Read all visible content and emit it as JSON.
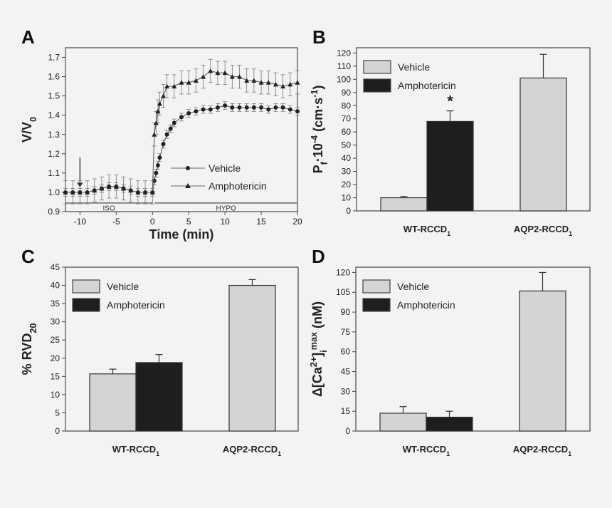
{
  "colors": {
    "vehicle": "#d4d4d4",
    "amphotericin": "#1e1e1e",
    "background": "#f3f3f3"
  },
  "chart_data": [
    {
      "panel": "A",
      "type": "line",
      "xlabel": "Time (min)",
      "ylabel": [
        {
          "t": "V/V",
          "p": "n"
        },
        {
          "t": "0",
          "p": "sub"
        }
      ],
      "xlim": [
        -12,
        20
      ],
      "ylim": [
        0.9,
        1.75
      ],
      "xticks": [
        -10,
        -5,
        0,
        5,
        10,
        15,
        20
      ],
      "yticks": [
        0.9,
        1.0,
        1.1,
        1.2,
        1.3,
        1.4,
        1.5,
        1.6,
        1.7
      ],
      "ytick_labels": [
        "0.9",
        "1.0",
        "1.1",
        "1.2",
        "1.3",
        "1.4",
        "1.5",
        "1.6",
        "1.7"
      ],
      "conditions": [
        {
          "label": "ISO",
          "from": -12,
          "to": 0
        },
        {
          "label": "HYPO",
          "from": 0.3,
          "to": 20
        }
      ],
      "arrow_at": -10,
      "legend_position": "center-right",
      "series": [
        {
          "name": "Vehicle",
          "marker": "circle",
          "error": 0.02,
          "x": [
            -12,
            -11,
            -10,
            -9,
            -8,
            -7,
            -6,
            -5,
            -4,
            -3,
            -2,
            -1,
            0,
            0.25,
            0.5,
            0.75,
            1,
            1.5,
            2,
            2.5,
            3,
            4,
            5,
            6,
            7,
            8,
            9,
            10,
            11,
            12,
            13,
            14,
            15,
            16,
            17,
            18,
            19,
            20
          ],
          "y": [
            1.0,
            1.0,
            1.0,
            1.0,
            1.01,
            1.02,
            1.03,
            1.03,
            1.02,
            1.01,
            1.0,
            1.0,
            1.0,
            1.06,
            1.1,
            1.14,
            1.18,
            1.25,
            1.3,
            1.33,
            1.36,
            1.39,
            1.41,
            1.42,
            1.43,
            1.43,
            1.44,
            1.45,
            1.44,
            1.44,
            1.44,
            1.44,
            1.44,
            1.43,
            1.44,
            1.44,
            1.43,
            1.42
          ]
        },
        {
          "name": "Amphotericin",
          "marker": "triangle",
          "error": 0.06,
          "x": [
            -12,
            -11,
            -10,
            -9,
            -8,
            -7,
            -6,
            -5,
            -4,
            -3,
            -2,
            -1,
            0,
            0.25,
            0.5,
            0.75,
            1,
            1.5,
            2,
            3,
            4,
            5,
            6,
            7,
            8,
            9,
            10,
            11,
            12,
            13,
            14,
            15,
            16,
            17,
            18,
            19,
            20
          ],
          "y": [
            1.0,
            1.0,
            1.0,
            1.0,
            1.01,
            1.02,
            1.03,
            1.03,
            1.02,
            1.01,
            1.0,
            1.0,
            1.0,
            1.3,
            1.36,
            1.42,
            1.46,
            1.5,
            1.55,
            1.55,
            1.57,
            1.57,
            1.58,
            1.6,
            1.63,
            1.62,
            1.62,
            1.6,
            1.6,
            1.58,
            1.58,
            1.57,
            1.57,
            1.56,
            1.55,
            1.56,
            1.57
          ]
        }
      ]
    },
    {
      "panel": "B",
      "type": "bar",
      "ylabel": [
        {
          "t": "P",
          "p": "n"
        },
        {
          "t": "f",
          "p": "sub"
        },
        {
          "t": "·10",
          "p": "n"
        },
        {
          "t": "-4",
          "p": "sup"
        },
        {
          "t": " (cm·s",
          "p": "n"
        },
        {
          "t": "-1",
          "p": "sup"
        },
        {
          "t": ")",
          "p": "n"
        }
      ],
      "ylim": [
        0,
        124
      ],
      "yticks": [
        0,
        10,
        20,
        30,
        40,
        50,
        60,
        70,
        80,
        90,
        100,
        110,
        120
      ],
      "categories": [
        {
          "label": "WT-RCCD",
          "sub": "1"
        },
        {
          "label": "AQP2-RCCD",
          "sub": "1"
        }
      ],
      "series": [
        {
          "name": "Vehicle",
          "values": [
            10,
            101
          ],
          "errors": [
            1,
            18
          ]
        },
        {
          "name": "Amphotericin",
          "values": [
            68,
            null
          ],
          "errors": [
            8,
            null
          ]
        }
      ],
      "annotations": [
        {
          "text": "*",
          "category": 0,
          "series": 1
        }
      ],
      "legend_position": "top-left"
    },
    {
      "panel": "C",
      "type": "bar",
      "ylabel": [
        {
          "t": "% RVD",
          "p": "n"
        },
        {
          "t": "20",
          "p": "sub"
        }
      ],
      "ylim": [
        0,
        45
      ],
      "yticks": [
        0,
        5,
        10,
        15,
        20,
        25,
        30,
        35,
        40,
        45
      ],
      "categories": [
        {
          "label": "WT-RCCD",
          "sub": "1"
        },
        {
          "label": "AQP2-RCCD",
          "sub": "1"
        }
      ],
      "series": [
        {
          "name": "Vehicle",
          "values": [
            15.7,
            40
          ],
          "errors": [
            1.3,
            1.6
          ]
        },
        {
          "name": "Amphotericin",
          "values": [
            18.8,
            null
          ],
          "errors": [
            2.2,
            null
          ]
        }
      ],
      "annotations": [],
      "legend_position": "top-left"
    },
    {
      "panel": "D",
      "type": "bar",
      "ylabel": [
        {
          "t": "Δ[Ca",
          "p": "n"
        },
        {
          "t": "2+",
          "p": "sup"
        },
        {
          "t": "]",
          "p": "n"
        },
        {
          "t": "i",
          "p": "sub"
        },
        {
          "t": "max",
          "p": "sup"
        },
        {
          "t": " (nM)",
          "p": "n"
        }
      ],
      "ylim": [
        0,
        124
      ],
      "yticks": [
        0,
        15,
        30,
        45,
        60,
        75,
        90,
        105,
        120
      ],
      "categories": [
        {
          "label": "WT-RCCD",
          "sub": "1"
        },
        {
          "label": "AQP2-RCCD",
          "sub": "1"
        }
      ],
      "series": [
        {
          "name": "Vehicle",
          "values": [
            13.5,
            106
          ],
          "errors": [
            5,
            14
          ]
        },
        {
          "name": "Amphotericin",
          "values": [
            10.5,
            null
          ],
          "errors": [
            4.5,
            null
          ]
        }
      ],
      "annotations": [],
      "legend_position": "top-left"
    }
  ]
}
